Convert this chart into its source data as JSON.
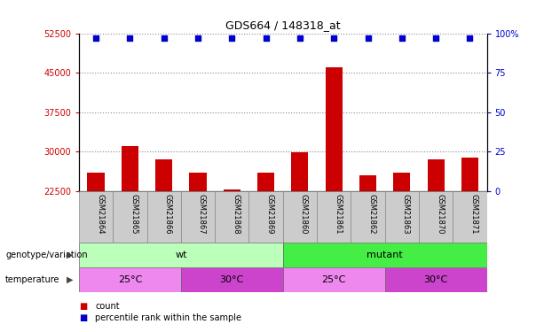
{
  "title": "GDS664 / 148318_at",
  "samples": [
    "GSM21864",
    "GSM21865",
    "GSM21866",
    "GSM21867",
    "GSM21868",
    "GSM21869",
    "GSM21860",
    "GSM21861",
    "GSM21862",
    "GSM21863",
    "GSM21870",
    "GSM21871"
  ],
  "counts": [
    26000,
    31000,
    28500,
    26000,
    22800,
    26000,
    29800,
    46000,
    25500,
    26000,
    28500,
    28800
  ],
  "percentile": [
    100,
    100,
    100,
    100,
    100,
    100,
    100,
    100,
    100,
    100,
    100,
    100
  ],
  "ylim_left": [
    22500,
    52500
  ],
  "ylim_right": [
    0,
    100
  ],
  "yticks_left": [
    22500,
    30000,
    37500,
    45000,
    52500
  ],
  "yticks_right": [
    0,
    25,
    50,
    75,
    100
  ],
  "ytick_right_labels": [
    "0",
    "25",
    "50",
    "75",
    "100%"
  ],
  "bar_color": "#cc0000",
  "percentile_color": "#0000cc",
  "bar_width": 0.5,
  "genotype_groups": [
    {
      "label": "wt",
      "start": 0,
      "end": 6,
      "color": "#bbffbb"
    },
    {
      "label": "mutant",
      "start": 6,
      "end": 12,
      "color": "#44ee44"
    }
  ],
  "temperature_groups": [
    {
      "label": "25°C",
      "start": 0,
      "end": 3,
      "color": "#ee88ee"
    },
    {
      "label": "30°C",
      "start": 3,
      "end": 6,
      "color": "#cc44cc"
    },
    {
      "label": "25°C",
      "start": 6,
      "end": 9,
      "color": "#ee88ee"
    },
    {
      "label": "30°C",
      "start": 9,
      "end": 12,
      "color": "#cc44cc"
    }
  ],
  "legend_count_label": "count",
  "legend_percentile_label": "percentile rank within the sample",
  "genotype_label": "genotype/variation",
  "temperature_label": "temperature",
  "grid_color": "#888888",
  "background_color": "#ffffff",
  "tick_label_color_left": "#cc0000",
  "tick_label_color_right": "#0000cc",
  "sample_box_color": "#cccccc",
  "sample_box_edge": "#888888"
}
